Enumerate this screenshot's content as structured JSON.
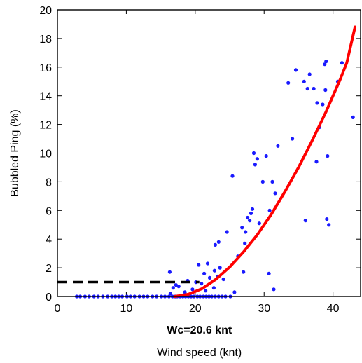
{
  "chart_data": {
    "type": "scatter",
    "xlabel": "Wind speed (knt)",
    "ylabel": "Bubbled Ping (%)",
    "xlim": [
      0,
      44
    ],
    "ylim": [
      0,
      20
    ],
    "x_ticks": [
      "0",
      "10",
      "20",
      "30",
      "40"
    ],
    "y_ticks": [
      "0",
      "2",
      "4",
      "6",
      "8",
      "10",
      "12",
      "14",
      "16",
      "18",
      "20"
    ],
    "annotation": "Wc=20.6 knt",
    "grid": false,
    "colors": {
      "points": "#1a1aff",
      "fit_curve": "#ff0000",
      "threshold_line": "#000000"
    },
    "series": [
      {
        "type": "scatter",
        "x": [
          2.8,
          3.3,
          4.0,
          4.6,
          5.3,
          5.9,
          6.6,
          7.3,
          7.9,
          8.4,
          8.9,
          9.4,
          10.1,
          10.6,
          11.2,
          11.9,
          12.5,
          13.1,
          13.8,
          14.4,
          15.1,
          15.6,
          16.2,
          16.7,
          17.1,
          17.4,
          17.8,
          18.2,
          18.6,
          19.0,
          19.4,
          19.8,
          20.3,
          20.7,
          21.2,
          21.6,
          22.0,
          22.4,
          22.9,
          23.4,
          23.9,
          24.4,
          25.1,
          16.4,
          16.8,
          17.2,
          17.6,
          18.5,
          19.6,
          20.1,
          20.9,
          21.5,
          22.1,
          22.7,
          23.3,
          24.1,
          18.9,
          20.5,
          21.3,
          22.8,
          23.6,
          16.3,
          21.8,
          22.9,
          23.4,
          24.6,
          25.4,
          26.2,
          26.8,
          27.2,
          27.6,
          27.9,
          28.1,
          28.3,
          28.5,
          28.7,
          29.0,
          29.3,
          29.8,
          30.3,
          30.7,
          31.2,
          31.6,
          32.0,
          27.3,
          31.4,
          25.7,
          27.0,
          30.8,
          33.5,
          34.1,
          34.6,
          35.8,
          36.3,
          36.6,
          37.2,
          37.6,
          38.0,
          38.5,
          38.8,
          39.0,
          39.2,
          39.4,
          36.0,
          39.1,
          40.7,
          42.9,
          37.7,
          38.9,
          41.3
        ],
        "y": [
          0.0,
          0.0,
          0.0,
          0.0,
          0.0,
          0.0,
          0.0,
          0.0,
          0.0,
          0.0,
          0.0,
          0.0,
          0.0,
          0.0,
          0.0,
          0.0,
          0.0,
          0.0,
          0.0,
          0.0,
          0.0,
          0.0,
          0.0,
          0.0,
          0.0,
          0.0,
          0.0,
          0.0,
          0.0,
          0.0,
          0.0,
          0.0,
          0.0,
          0.0,
          0.0,
          0.0,
          0.0,
          0.0,
          0.0,
          0.0,
          0.0,
          0.0,
          0.0,
          0.2,
          0.6,
          0.8,
          0.7,
          0.3,
          0.5,
          1.0,
          0.9,
          0.4,
          1.3,
          0.6,
          1.4,
          1.2,
          1.1,
          2.2,
          1.6,
          1.8,
          2.0,
          1.7,
          2.3,
          3.6,
          3.8,
          4.5,
          8.4,
          2.8,
          4.8,
          3.7,
          5.5,
          5.3,
          5.8,
          6.1,
          10.0,
          9.2,
          9.6,
          5.1,
          8.0,
          9.8,
          1.6,
          8.0,
          7.2,
          10.5,
          4.5,
          0.5,
          0.3,
          1.7,
          6.0,
          14.9,
          11.0,
          15.8,
          15.0,
          14.5,
          15.5,
          14.5,
          9.4,
          11.8,
          13.4,
          16.2,
          16.4,
          9.8,
          5.0,
          5.3,
          5.4,
          15.0,
          12.5,
          13.5,
          14.4,
          16.3
        ]
      },
      {
        "type": "line",
        "x": [
          17,
          19,
          21,
          23,
          25,
          27,
          29,
          31,
          33,
          35,
          37,
          39,
          41,
          42,
          43.2
        ],
        "y": [
          0,
          0.15,
          0.55,
          1.2,
          2.05,
          3.1,
          4.3,
          5.7,
          7.3,
          9.0,
          10.9,
          12.9,
          15.1,
          16.3,
          18.8
        ]
      },
      {
        "type": "threshold",
        "x": [
          0,
          20.6
        ],
        "y": [
          1,
          1
        ]
      }
    ]
  }
}
